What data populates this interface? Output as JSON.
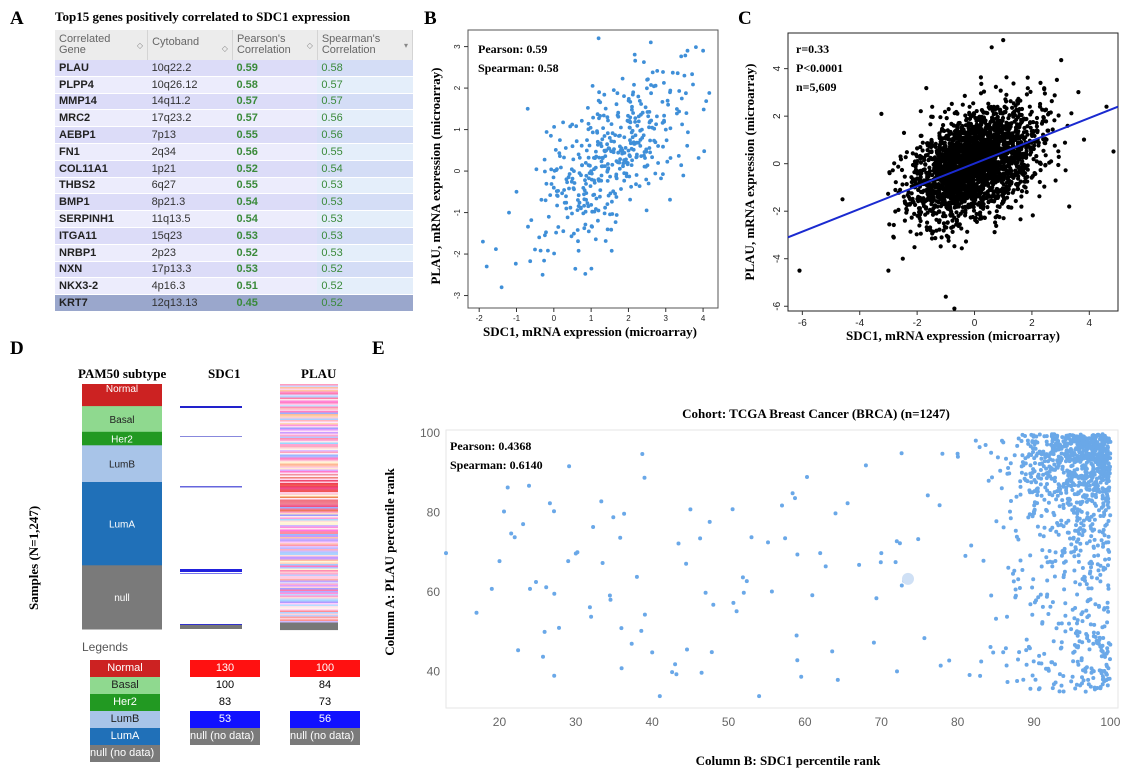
{
  "panels": {
    "a": "A",
    "b": "B",
    "c": "C",
    "d": "D",
    "e": "E"
  },
  "panel_a": {
    "title": "Top15 genes positively correlated to SDC1 expression",
    "columns": [
      "Correlated Gene",
      "Cytoband",
      "Pearson's Correlation",
      "Spearman's Correlation"
    ],
    "rows": [
      [
        "PLAU",
        "10q22.2",
        "0.59",
        "0.58"
      ],
      [
        "PLPP4",
        "10q26.12",
        "0.58",
        "0.57"
      ],
      [
        "MMP14",
        "14q11.2",
        "0.57",
        "0.57"
      ],
      [
        "MRC2",
        "17q23.2",
        "0.57",
        "0.56"
      ],
      [
        "AEBP1",
        "7p13",
        "0.55",
        "0.56"
      ],
      [
        "FN1",
        "2q34",
        "0.56",
        "0.55"
      ],
      [
        "COL11A1",
        "1p21",
        "0.52",
        "0.54"
      ],
      [
        "THBS2",
        "6q27",
        "0.55",
        "0.53"
      ],
      [
        "BMP1",
        "8p21.3",
        "0.54",
        "0.53"
      ],
      [
        "SERPINH1",
        "11q13.5",
        "0.54",
        "0.53"
      ],
      [
        "ITGA11",
        "15q23",
        "0.53",
        "0.53"
      ],
      [
        "NRBP1",
        "2p23",
        "0.52",
        "0.53"
      ],
      [
        "NXN",
        "17p13.3",
        "0.53",
        "0.52"
      ],
      [
        "NKX3-2",
        "4p16.3",
        "0.51",
        "0.52"
      ],
      [
        "KRT7",
        "12q13.13",
        "0.45",
        "0.52"
      ]
    ],
    "colors": {
      "header": "#ececec",
      "row_odd": "#dcdcf8",
      "row_even": "#ececfc",
      "highlight": "#9aa7cc",
      "value": "#3a8a3a"
    }
  },
  "chart_data": [
    {
      "id": "B",
      "type": "scatter",
      "xlabel": "SDC1, mRNA expression (microarray)",
      "ylabel": "PLAU, mRNA expression (microarray)",
      "annotations": [
        "Pearson: 0.59",
        "Spearman:  0.58"
      ],
      "xlim": [
        -2.3,
        4.4
      ],
      "ylim": [
        -3.3,
        3.4
      ],
      "xticks": [
        "-2",
        "-1",
        "0",
        "1",
        "2",
        "3",
        "4"
      ],
      "yticks": [
        "-3",
        "-2",
        "-1",
        "0",
        "1",
        "2",
        "3"
      ],
      "color": "#3f8fd8",
      "points_estimated": {
        "n": 420,
        "center": [
          1.6,
          0.3
        ],
        "sample": [
          [
            -1.9,
            -1.7
          ],
          [
            -1.8,
            -2.3
          ],
          [
            -1.4,
            -2.8
          ],
          [
            -1.2,
            -1.0
          ],
          [
            -1.0,
            -0.5
          ],
          [
            -0.7,
            1.5
          ],
          [
            -0.3,
            -2.5
          ],
          [
            0.0,
            -0.4
          ],
          [
            0.5,
            0.6
          ],
          [
            1.0,
            0.0
          ],
          [
            1.5,
            0.8
          ],
          [
            2.0,
            1.2
          ],
          [
            2.5,
            2.2
          ],
          [
            3.0,
            1.0
          ],
          [
            3.5,
            2.3
          ],
          [
            4.0,
            2.9
          ],
          [
            1.2,
            3.2
          ],
          [
            2.6,
            3.1
          ]
        ]
      }
    },
    {
      "id": "C",
      "type": "scatter",
      "xlabel": "SDC1, mRNA expression (microarray)",
      "ylabel": "PLAU, mRNA expression (microarray)",
      "annotations": [
        "r=0.33",
        "P<0.0001",
        "n=5,609"
      ],
      "xlim": [
        -6.5,
        5.0
      ],
      "ylim": [
        -6.2,
        5.5
      ],
      "xticks": [
        "-6",
        "-4",
        "-2",
        "0",
        "2",
        "4"
      ],
      "yticks": [
        "-6",
        "-4",
        "-2",
        "0",
        "2",
        "4"
      ],
      "color": "#000000",
      "regression_line": {
        "color": "#1a2ad0",
        "from": [
          -6.5,
          -3.1
        ],
        "to": [
          5.0,
          2.4
        ]
      },
      "points_estimated": {
        "n": 5609,
        "center": [
          0.0,
          0.0
        ],
        "sample": [
          [
            -6.1,
            -4.5
          ],
          [
            -4.6,
            -1.5
          ],
          [
            -3.0,
            -4.5
          ],
          [
            -2.5,
            -4.0
          ],
          [
            -1.0,
            -5.6
          ],
          [
            -0.7,
            -6.1
          ],
          [
            1.0,
            5.2
          ],
          [
            0.6,
            4.9
          ],
          [
            2.3,
            3.4
          ],
          [
            3.3,
            -1.8
          ],
          [
            4.6,
            2.4
          ],
          [
            2.2,
            1.0
          ]
        ]
      }
    },
    {
      "id": "D",
      "type": "heatmap",
      "headers": [
        "PAM50 subtype",
        "SDC1",
        "PLAU"
      ],
      "ylabel": "Samples (N=1,247)",
      "subtypes": [
        {
          "name": "Normal",
          "color": "#cc2222",
          "fraction": 0.09
        },
        {
          "name": "Basal",
          "color": "#8fd98f",
          "fraction": 0.105
        },
        {
          "name": "Her2",
          "color": "#229922",
          "fraction": 0.055
        },
        {
          "name": "LumB",
          "color": "#a8c4e8",
          "fraction": 0.15
        },
        {
          "name": "LumA",
          "color": "#2070b8",
          "fraction": 0.34
        },
        {
          "name": "null",
          "color": "#7a7a7a",
          "fraction": 0.26
        }
      ],
      "legends_title": "Legends",
      "legend_subtypes": [
        "Normal",
        "Basal",
        "Her2",
        "LumB",
        "LumA",
        "null (no data)"
      ],
      "legend_sdc1": [
        {
          "text": "130",
          "bg": "#ff1111",
          "fg": "#ffffff"
        },
        {
          "text": "100",
          "bg": "#ffffff",
          "fg": "#000000"
        },
        {
          "text": "83",
          "bg": "#ffffff",
          "fg": "#000000"
        },
        {
          "text": "53",
          "bg": "#1111ff",
          "fg": "#ffffff"
        },
        {
          "text": "null (no data)",
          "bg": "#7a7a7a",
          "fg": "#ffffff"
        }
      ],
      "legend_plau": [
        {
          "text": "100",
          "bg": "#ff1111",
          "fg": "#ffffff"
        },
        {
          "text": "84",
          "bg": "#ffffff",
          "fg": "#000000"
        },
        {
          "text": "73",
          "bg": "#ffffff",
          "fg": "#000000"
        },
        {
          "text": "56",
          "bg": "#1111ff",
          "fg": "#ffffff"
        },
        {
          "text": "null (no data)",
          "bg": "#7a7a7a",
          "fg": "#ffffff"
        }
      ]
    },
    {
      "id": "E",
      "type": "scatter",
      "title": "Cohort: TCGA Breast Cancer (BRCA) (n=1247)",
      "xlabel": "Column B: SDC1 percentile rank",
      "ylabel": "Column A:  PLAU percentile rank",
      "annotations": [
        "Pearson: 0.4368",
        "Spearman:  0.6140"
      ],
      "xlim": [
        13,
        101
      ],
      "ylim": [
        31,
        101
      ],
      "xticks": [
        "20",
        "30",
        "40",
        "50",
        "60",
        "70",
        "80",
        "90",
        "100"
      ],
      "yticks": [
        "40",
        "60",
        "80",
        "100"
      ],
      "color": "#6aa8e8",
      "points_estimated": {
        "n": 1247,
        "sample": [
          [
            13,
            70
          ],
          [
            17,
            55
          ],
          [
            19,
            61
          ],
          [
            20,
            68
          ],
          [
            22,
            74
          ],
          [
            24,
            61
          ],
          [
            29,
            68
          ],
          [
            32,
            54
          ],
          [
            36,
            41
          ],
          [
            38,
            64
          ],
          [
            39,
            89
          ],
          [
            40,
            45
          ],
          [
            41,
            34
          ],
          [
            43,
            42
          ],
          [
            45,
            81
          ],
          [
            47,
            60
          ],
          [
            48,
            57
          ],
          [
            52,
            60
          ],
          [
            53,
            74
          ],
          [
            54,
            34
          ],
          [
            57,
            82
          ],
          [
            59,
            43
          ],
          [
            62,
            70
          ],
          [
            64,
            80
          ],
          [
            70,
            70
          ],
          [
            73,
            63
          ],
          [
            78,
            95
          ],
          [
            80,
            95
          ],
          [
            90,
            80
          ],
          [
            95,
            90
          ],
          [
            100,
            98
          ],
          [
            99,
            37
          ]
        ]
      }
    }
  ]
}
